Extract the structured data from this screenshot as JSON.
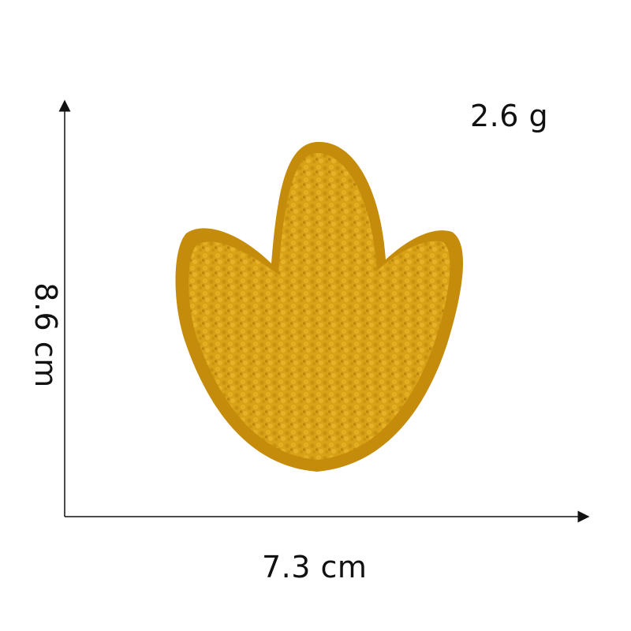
{
  "dimensions": {
    "weight": "2.6 g",
    "height": "8.6 cm",
    "width": "7.3 cm"
  },
  "product": {
    "icon": "dinosaur-footprint-patch",
    "color": "#D9A216",
    "edge_color": "#C58B0A",
    "texture_color": "#E6B22A"
  },
  "axes": {
    "color": "#111111"
  }
}
